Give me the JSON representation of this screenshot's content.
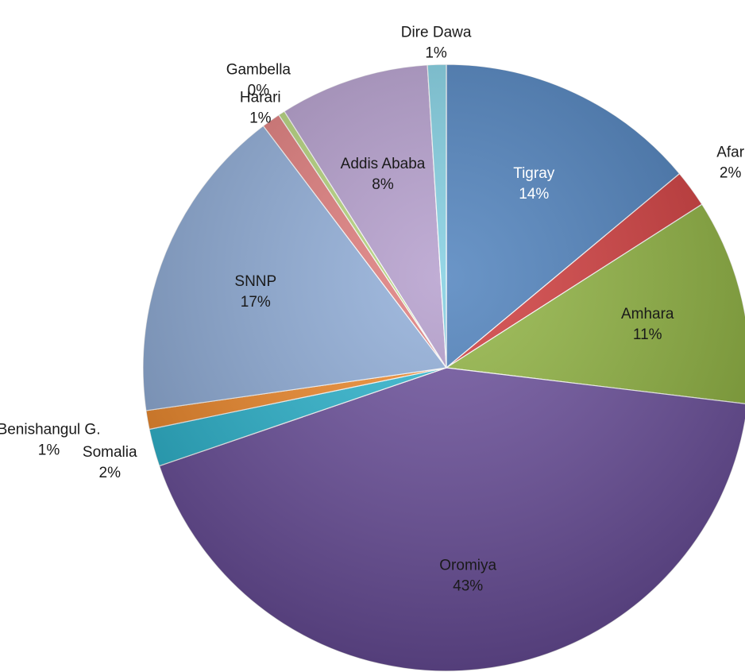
{
  "chart_data": {
    "type": "pie",
    "title": "",
    "slices": [
      {
        "label": "Tigray",
        "value": 14,
        "display": "14%",
        "color": "#4a7ebb"
      },
      {
        "label": "Afar",
        "value": 2,
        "display": "2%",
        "color": "#d0393a"
      },
      {
        "label": "Amhara",
        "value": 11,
        "display": "11%",
        "color": "#8fb33f"
      },
      {
        "label": "Oromiya",
        "value": 43,
        "display": "43%",
        "color": "#6b4f9c"
      },
      {
        "label": "Somalia",
        "value": 2,
        "display": "2%",
        "color": "#2bb6d0"
      },
      {
        "label": "Benishangul G.",
        "value": 1,
        "display": "1%",
        "color": "#f28a2a"
      },
      {
        "label": "SNNP",
        "value": 17,
        "display": "17%",
        "color": "#8fadd9"
      },
      {
        "label": "Harari",
        "value": 1,
        "display": "1%",
        "color": "#e07a7a"
      },
      {
        "label": "Gambella",
        "value": 0,
        "display": "0%",
        "color": "#b5d47a"
      },
      {
        "label": "Addis Ababa",
        "value": 8,
        "display": "8%",
        "color": "#b39ccc"
      },
      {
        "label": "Dire Dawa",
        "value": 1,
        "display": "1%",
        "color": "#7ecde0"
      }
    ],
    "legend": "none"
  }
}
